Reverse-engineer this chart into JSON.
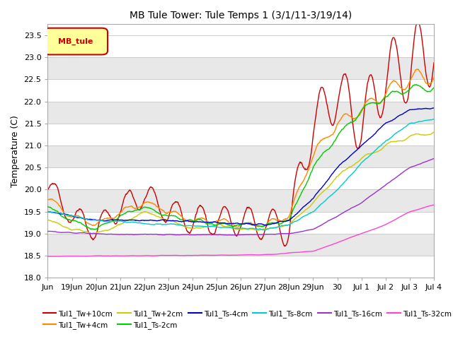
{
  "title": "MB Tule Tower: Tule Temps 1 (3/1/11-3/19/14)",
  "ylabel": "Temperature (C)",
  "ylim": [
    18.0,
    23.75
  ],
  "yticks": [
    18.0,
    18.5,
    19.0,
    19.5,
    20.0,
    20.5,
    21.0,
    21.5,
    22.0,
    22.5,
    23.0,
    23.5
  ],
  "legend_box_label": "MB_tule",
  "series": [
    {
      "label": "Tul1_Tw+10cm",
      "color": "#cc0000",
      "lw": 1.0
    },
    {
      "label": "Tul1_Tw+4cm",
      "color": "#ff8800",
      "lw": 1.0
    },
    {
      "label": "Tul1_Tw+2cm",
      "color": "#cccc00",
      "lw": 1.0
    },
    {
      "label": "Tul1_Ts-2cm",
      "color": "#00cc00",
      "lw": 1.0
    },
    {
      "label": "Tul1_Ts-4cm",
      "color": "#0000cc",
      "lw": 1.0
    },
    {
      "label": "Tul1_Ts-8cm",
      "color": "#00cccc",
      "lw": 1.0
    },
    {
      "label": "Tul1_Ts-16cm",
      "color": "#9933cc",
      "lw": 1.0
    },
    {
      "label": "Tul1_Ts-32cm",
      "color": "#ff44cc",
      "lw": 1.0
    }
  ],
  "x_tick_labels": [
    "Jun",
    "19Jun",
    "20Jun",
    "21Jun",
    "22Jun",
    "23Jun",
    "24Jun",
    "25Jun",
    "26Jun",
    "27Jun",
    "28Jun",
    "29Jun",
    "30",
    "Jul 1",
    "Jul 2",
    "Jul 3",
    "Jul 4"
  ],
  "background_color": "#ffffff",
  "plot_bg_light": "#f0f0f0",
  "plot_bg_dark": "#e0e0e0"
}
